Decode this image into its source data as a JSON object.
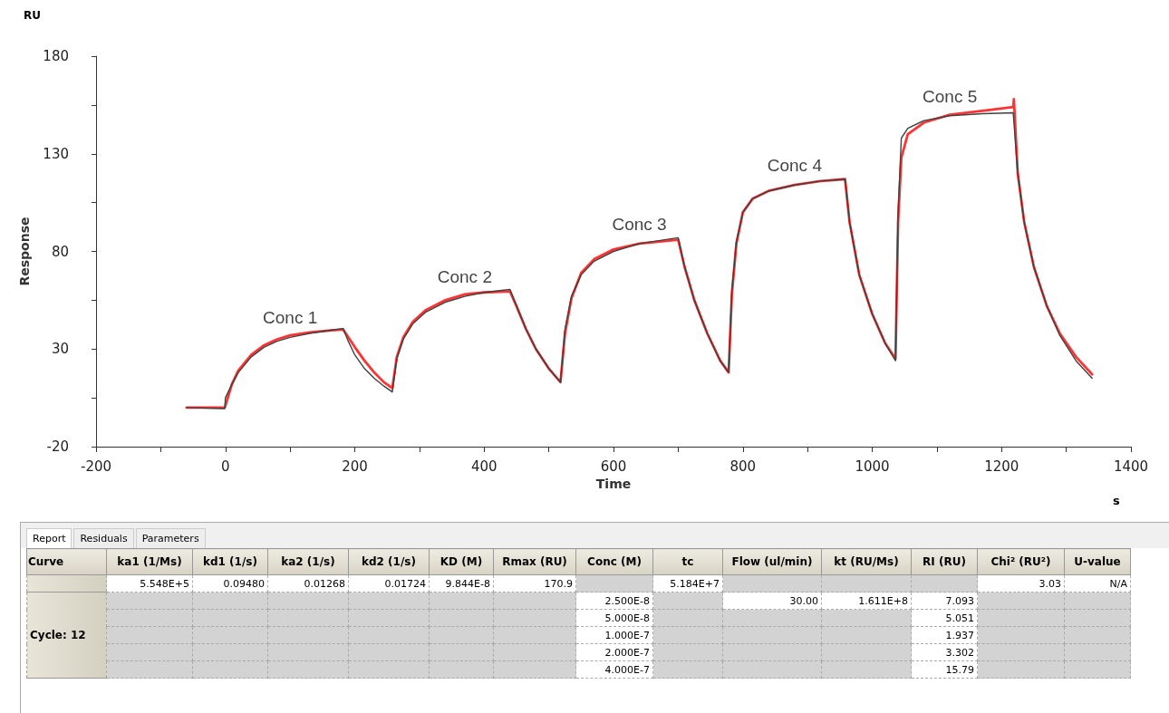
{
  "chart_data": {
    "type": "line",
    "xlabel": "Time",
    "ylabel": "Response",
    "xlim": [
      -200,
      1400
    ],
    "ylim": [
      -20,
      180
    ],
    "xticks": [
      -200,
      {
        "value": -100,
        "label": null
      },
      0,
      {
        "value": 100,
        "label": null
      },
      200,
      {
        "value": 300,
        "label": null
      },
      400,
      {
        "value": 500,
        "label": null
      },
      600,
      {
        "value": 700,
        "label": null
      },
      800,
      {
        "value": 900,
        "label": null
      },
      1000,
      {
        "value": 1100,
        "label": null
      },
      1200,
      {
        "value": 1300,
        "label": null
      },
      1400
    ],
    "yticks": [
      -20,
      {
        "value": 5,
        "label": null
      },
      30,
      {
        "value": 55,
        "label": null
      },
      80,
      {
        "value": 105,
        "label": null
      },
      130,
      {
        "value": 155,
        "label": null
      },
      180
    ],
    "grid": false,
    "marker": "none",
    "line_style": "solid",
    "series": [
      {
        "color": "#ff3333",
        "x": [
          -60,
          -1,
          0,
          10,
          20,
          40,
          60,
          80,
          100,
          130,
          160,
          182,
          190,
          200,
          215,
          230,
          245,
          258,
          265,
          275,
          290,
          310,
          340,
          370,
          400,
          440,
          450,
          465,
          480,
          500,
          518,
          525,
          535,
          550,
          570,
          600,
          640,
          700,
          710,
          725,
          745,
          765,
          778,
          783,
          790,
          800,
          815,
          840,
          880,
          920,
          958,
          965,
          980,
          1000,
          1020,
          1036,
          1040,
          1045,
          1055,
          1080,
          1120,
          1170,
          1218,
          1219,
          1225,
          1235,
          1250,
          1270,
          1290,
          1315,
          1340
        ],
        "values": [
          0,
          0,
          1,
          12,
          19,
          27,
          32,
          35,
          37,
          38.5,
          39.5,
          40,
          36,
          31,
          24,
          18,
          13,
          10,
          26,
          36,
          44,
          50,
          55,
          58,
          59,
          59.5,
          52,
          40,
          30,
          20,
          13,
          38,
          56,
          69,
          76,
          81,
          84,
          86,
          72,
          55,
          38,
          24,
          18,
          58,
          84,
          100,
          107,
          111,
          114,
          116,
          117,
          95,
          68,
          48,
          33,
          25,
          95,
          128,
          140,
          146,
          150,
          152,
          154,
          158,
          120,
          95,
          72,
          52,
          38,
          26,
          17
        ]
      },
      {
        "color": "#404040",
        "x": [
          -60,
          -1,
          0,
          10,
          20,
          40,
          60,
          80,
          100,
          130,
          160,
          182,
          190,
          200,
          215,
          230,
          245,
          258,
          265,
          275,
          290,
          310,
          340,
          370,
          400,
          440,
          450,
          465,
          480,
          500,
          518,
          525,
          535,
          550,
          570,
          600,
          640,
          700,
          710,
          725,
          745,
          765,
          778,
          783,
          790,
          800,
          815,
          840,
          880,
          920,
          958,
          965,
          980,
          1000,
          1020,
          1036,
          1040,
          1045,
          1055,
          1080,
          1120,
          1170,
          1218,
          1225,
          1235,
          1250,
          1270,
          1290,
          1315,
          1340
        ],
        "values": [
          0,
          -0.5,
          5,
          12,
          18,
          26,
          31,
          34,
          36,
          38,
          39.5,
          40.5,
          34,
          27,
          20,
          15,
          11,
          8,
          25,
          35,
          43,
          49,
          54,
          57,
          59,
          60.5,
          52,
          40,
          30,
          20,
          13,
          40,
          57,
          68,
          75,
          80,
          84,
          87,
          72,
          55,
          38,
          24,
          18,
          60,
          85,
          100,
          107,
          111,
          114,
          116,
          117,
          95,
          68,
          48,
          33,
          24,
          100,
          138,
          143,
          147,
          149.5,
          150.5,
          151,
          120,
          95,
          72,
          52,
          37,
          24,
          15
        ]
      }
    ],
    "annotations": [
      {
        "text": "Conc 1",
        "x": 100,
        "y": 36
      },
      {
        "text": "Conc 2",
        "x": 370,
        "y": 57
      },
      {
        "text": "Conc 3",
        "x": 640,
        "y": 84
      },
      {
        "text": "Conc 4",
        "x": 880,
        "y": 114
      },
      {
        "text": "Conc 5",
        "x": 1120,
        "y": 149.5
      },
      "RU",
      "s",
      "Report\tResiduals\tParameters",
      "Curve\tka1 (1/Ms)\tkd1 (1/s)\tka2 (1/s)\tkd2 (1/s)\tKD (M)\tRmax (RU)\tConc (M)\ttc\tFlow (ul/min)\tkt (RU/Ms)\tRI (RU)\tChi² (RU²)\tU-value",
      "\t5.548E+5\t0.09480\t0.01268\t0.01724\t9.844E-8\t170.9\t\t5.184E+7\t\t\t\t3.03\tN/A",
      "\t\t\t\t\t\t\t2.500E-8\t\t30.00\t1.611E+8\t7.093\t\t",
      "\t\t\t\t\t\t\t5.000E-8\t\t\t\t5.051\t\t",
      "Cycle: 12\t\t\t\t\t\t\t1.000E-7\t\t\t\t1.937\t\t",
      "\t\t\t\t\t\t\t2.000E-7\t\t\t\t3.302\t\t",
      "\t\t\t\t\t\t\t4.000E-7\t\t\t\t15.79\t\t"
    ]
  }
}
